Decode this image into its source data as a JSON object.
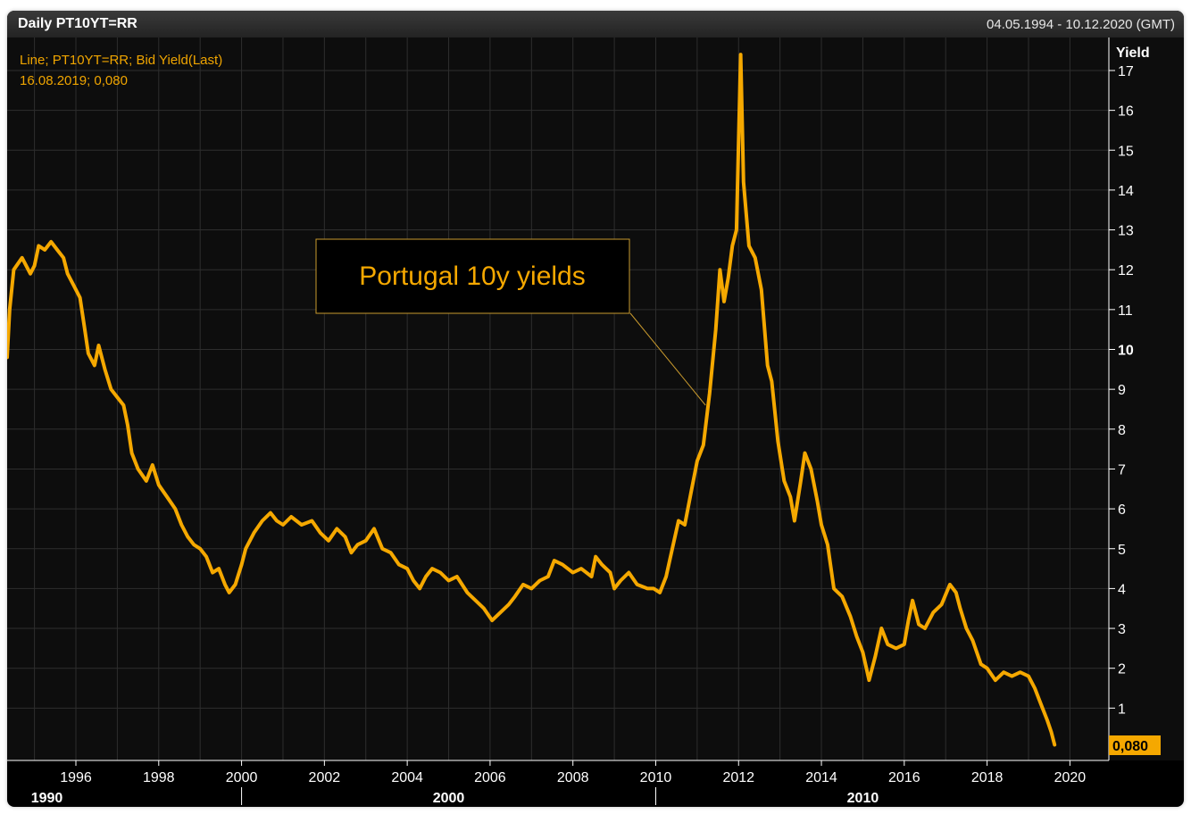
{
  "header": {
    "title": "Daily PT10YT=RR",
    "date_range": "04.05.1994 - 10.12.2020 (GMT)"
  },
  "colors": {
    "line": "#f5a800",
    "background": "#0d0d0d",
    "grid": "#2e2e2e",
    "text": "#ffffff"
  },
  "chart_data": {
    "type": "line",
    "title": "Daily PT10YT=RR",
    "ylabel": "Yield",
    "xlabel": "",
    "ylim": [
      0,
      17.5
    ],
    "xlim": [
      1994.34,
      2020.94
    ],
    "legend": {
      "line1": "Line; PT10YT=RR; Bid Yield(Last)",
      "line2": "16.08.2019; 0,080",
      "placement": "top-left"
    },
    "annotation": {
      "text": "Portugal 10y yields",
      "target": [
        2011.2,
        8.6
      ]
    },
    "last_value_label": "0,080",
    "y_ticks": [
      "1",
      "2",
      "3",
      "4",
      "5",
      "6",
      "7",
      "8",
      "9",
      "10",
      "11",
      "12",
      "13",
      "14",
      "15",
      "16",
      "17"
    ],
    "x_ticks": [
      "1996",
      "1998",
      "2000",
      "2002",
      "2004",
      "2006",
      "2008",
      "2010",
      "2012",
      "2014",
      "2016",
      "2018",
      "2020"
    ],
    "x_major_labels": [
      {
        "label": "1990",
        "at": 1995.3
      },
      {
        "label": "2000",
        "at": 2005.0
      },
      {
        "label": "2010",
        "at": 2015.0
      }
    ],
    "series": [
      {
        "name": "PT10YT=RR Bid Yield",
        "points": [
          [
            1994.34,
            9.8
          ],
          [
            1994.4,
            11.0
          ],
          [
            1994.5,
            12.0
          ],
          [
            1994.7,
            12.3
          ],
          [
            1994.9,
            11.9
          ],
          [
            1995.0,
            12.1
          ],
          [
            1995.1,
            12.6
          ],
          [
            1995.25,
            12.5
          ],
          [
            1995.4,
            12.7
          ],
          [
            1995.55,
            12.5
          ],
          [
            1995.7,
            12.3
          ],
          [
            1995.8,
            11.9
          ],
          [
            1995.95,
            11.6
          ],
          [
            1996.1,
            11.3
          ],
          [
            1996.2,
            10.6
          ],
          [
            1996.3,
            9.9
          ],
          [
            1996.45,
            9.6
          ],
          [
            1996.55,
            10.1
          ],
          [
            1996.7,
            9.5
          ],
          [
            1996.85,
            9.0
          ],
          [
            1997.0,
            8.8
          ],
          [
            1997.15,
            8.6
          ],
          [
            1997.25,
            8.1
          ],
          [
            1997.35,
            7.4
          ],
          [
            1997.5,
            7.0
          ],
          [
            1997.7,
            6.7
          ],
          [
            1997.85,
            7.1
          ],
          [
            1998.0,
            6.6
          ],
          [
            1998.2,
            6.3
          ],
          [
            1998.4,
            6.0
          ],
          [
            1998.55,
            5.6
          ],
          [
            1998.7,
            5.3
          ],
          [
            1998.85,
            5.1
          ],
          [
            1999.0,
            5.0
          ],
          [
            1999.15,
            4.8
          ],
          [
            1999.3,
            4.4
          ],
          [
            1999.45,
            4.5
          ],
          [
            1999.6,
            4.1
          ],
          [
            1999.7,
            3.9
          ],
          [
            1999.85,
            4.1
          ],
          [
            2000.0,
            4.6
          ],
          [
            2000.1,
            5.0
          ],
          [
            2000.3,
            5.4
          ],
          [
            2000.5,
            5.7
          ],
          [
            2000.7,
            5.9
          ],
          [
            2000.85,
            5.7
          ],
          [
            2001.0,
            5.6
          ],
          [
            2001.2,
            5.8
          ],
          [
            2001.45,
            5.6
          ],
          [
            2001.7,
            5.7
          ],
          [
            2001.9,
            5.4
          ],
          [
            2002.1,
            5.2
          ],
          [
            2002.3,
            5.5
          ],
          [
            2002.5,
            5.3
          ],
          [
            2002.65,
            4.9
          ],
          [
            2002.8,
            5.1
          ],
          [
            2003.0,
            5.2
          ],
          [
            2003.2,
            5.5
          ],
          [
            2003.4,
            5.0
          ],
          [
            2003.6,
            4.9
          ],
          [
            2003.8,
            4.6
          ],
          [
            2004.0,
            4.5
          ],
          [
            2004.15,
            4.2
          ],
          [
            2004.3,
            4.0
          ],
          [
            2004.45,
            4.3
          ],
          [
            2004.6,
            4.5
          ],
          [
            2004.8,
            4.4
          ],
          [
            2005.0,
            4.2
          ],
          [
            2005.2,
            4.3
          ],
          [
            2005.45,
            3.9
          ],
          [
            2005.65,
            3.7
          ],
          [
            2005.85,
            3.5
          ],
          [
            2006.05,
            3.2
          ],
          [
            2006.25,
            3.4
          ],
          [
            2006.45,
            3.6
          ],
          [
            2006.6,
            3.8
          ],
          [
            2006.8,
            4.1
          ],
          [
            2007.0,
            4.0
          ],
          [
            2007.2,
            4.2
          ],
          [
            2007.4,
            4.3
          ],
          [
            2007.55,
            4.7
          ],
          [
            2007.75,
            4.6
          ],
          [
            2008.0,
            4.4
          ],
          [
            2008.2,
            4.5
          ],
          [
            2008.45,
            4.3
          ],
          [
            2008.55,
            4.8
          ],
          [
            2008.7,
            4.6
          ],
          [
            2008.9,
            4.4
          ],
          [
            2009.0,
            4.0
          ],
          [
            2009.15,
            4.2
          ],
          [
            2009.35,
            4.4
          ],
          [
            2009.55,
            4.1
          ],
          [
            2009.8,
            4.0
          ],
          [
            2009.95,
            4.0
          ],
          [
            2010.1,
            3.9
          ],
          [
            2010.25,
            4.3
          ],
          [
            2010.4,
            5.0
          ],
          [
            2010.55,
            5.7
          ],
          [
            2010.7,
            5.6
          ],
          [
            2010.85,
            6.4
          ],
          [
            2011.0,
            7.2
          ],
          [
            2011.15,
            7.6
          ],
          [
            2011.3,
            8.9
          ],
          [
            2011.45,
            10.5
          ],
          [
            2011.55,
            12.0
          ],
          [
            2011.65,
            11.2
          ],
          [
            2011.75,
            11.8
          ],
          [
            2011.85,
            12.6
          ],
          [
            2011.95,
            13.0
          ],
          [
            2012.05,
            17.4
          ],
          [
            2012.12,
            14.2
          ],
          [
            2012.25,
            12.6
          ],
          [
            2012.4,
            12.3
          ],
          [
            2012.55,
            11.5
          ],
          [
            2012.7,
            9.6
          ],
          [
            2012.8,
            9.2
          ],
          [
            2012.95,
            7.7
          ],
          [
            2013.1,
            6.7
          ],
          [
            2013.25,
            6.3
          ],
          [
            2013.35,
            5.7
          ],
          [
            2013.5,
            6.7
          ],
          [
            2013.6,
            7.4
          ],
          [
            2013.75,
            7.0
          ],
          [
            2013.9,
            6.2
          ],
          [
            2014.0,
            5.6
          ],
          [
            2014.15,
            5.1
          ],
          [
            2014.3,
            4.0
          ],
          [
            2014.5,
            3.8
          ],
          [
            2014.7,
            3.3
          ],
          [
            2014.85,
            2.8
          ],
          [
            2015.0,
            2.4
          ],
          [
            2015.15,
            1.7
          ],
          [
            2015.3,
            2.3
          ],
          [
            2015.45,
            3.0
          ],
          [
            2015.6,
            2.6
          ],
          [
            2015.8,
            2.5
          ],
          [
            2016.0,
            2.6
          ],
          [
            2016.1,
            3.2
          ],
          [
            2016.2,
            3.7
          ],
          [
            2016.35,
            3.1
          ],
          [
            2016.5,
            3.0
          ],
          [
            2016.7,
            3.4
          ],
          [
            2016.9,
            3.6
          ],
          [
            2017.1,
            4.1
          ],
          [
            2017.25,
            3.9
          ],
          [
            2017.35,
            3.5
          ],
          [
            2017.5,
            3.0
          ],
          [
            2017.65,
            2.7
          ],
          [
            2017.85,
            2.1
          ],
          [
            2018.0,
            2.0
          ],
          [
            2018.2,
            1.7
          ],
          [
            2018.4,
            1.9
          ],
          [
            2018.6,
            1.8
          ],
          [
            2018.8,
            1.9
          ],
          [
            2019.0,
            1.8
          ],
          [
            2019.15,
            1.5
          ],
          [
            2019.3,
            1.1
          ],
          [
            2019.45,
            0.7
          ],
          [
            2019.55,
            0.4
          ],
          [
            2019.63,
            0.08
          ]
        ]
      }
    ]
  }
}
